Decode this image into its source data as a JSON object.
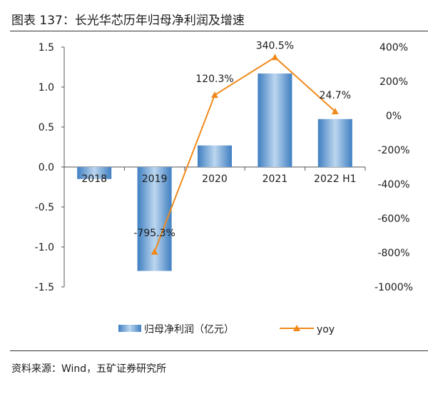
{
  "header": {
    "title": "图表 137：长光华芯历年归母净利润及增速"
  },
  "footer": {
    "source": "资料来源：Wind，五矿证券研究所"
  },
  "colors": {
    "bar_dark": "#3f7fc1",
    "bar_light": "#bcd6ef",
    "line": "#f08a1c",
    "axis": "#555555"
  },
  "chart_data": {
    "type": "bar",
    "title": "长光华芯历年归母净利润及增速",
    "categories": [
      "2018",
      "2019",
      "2020",
      "2021",
      "2022 H1"
    ],
    "series": [
      {
        "name": "归母净利润（亿元）",
        "type": "bar",
        "axis": "left",
        "values": [
          -0.15,
          -1.3,
          0.27,
          1.17,
          0.6
        ]
      },
      {
        "name": "yoy",
        "type": "line",
        "axis": "right",
        "values": [
          null,
          -795.3,
          120.3,
          340.5,
          24.7
        ],
        "labels": [
          null,
          "-795.3%",
          "120.3%",
          "340.5%",
          "24.7%"
        ]
      }
    ],
    "left_axis": {
      "ylim": [
        -1.5,
        1.5
      ],
      "ticks": [
        "1.5",
        "1.0",
        "0.5",
        "0.0",
        "-0.5",
        "-1.0",
        "-1.5"
      ],
      "tick_values": [
        1.5,
        1.0,
        0.5,
        0.0,
        -0.5,
        -1.0,
        -1.5
      ]
    },
    "right_axis": {
      "ylim": [
        -1000,
        400
      ],
      "ticks": [
        "400%",
        "200%",
        "0%",
        "-200%",
        "-400%",
        "-600%",
        "-800%",
        "-1000%"
      ],
      "tick_values": [
        400,
        200,
        0,
        -200,
        -400,
        -600,
        -800,
        -1000
      ]
    },
    "legend": {
      "position": "bottom",
      "bar_label": "归母净利润（亿元）",
      "line_label": "yoy"
    },
    "grid": false
  }
}
